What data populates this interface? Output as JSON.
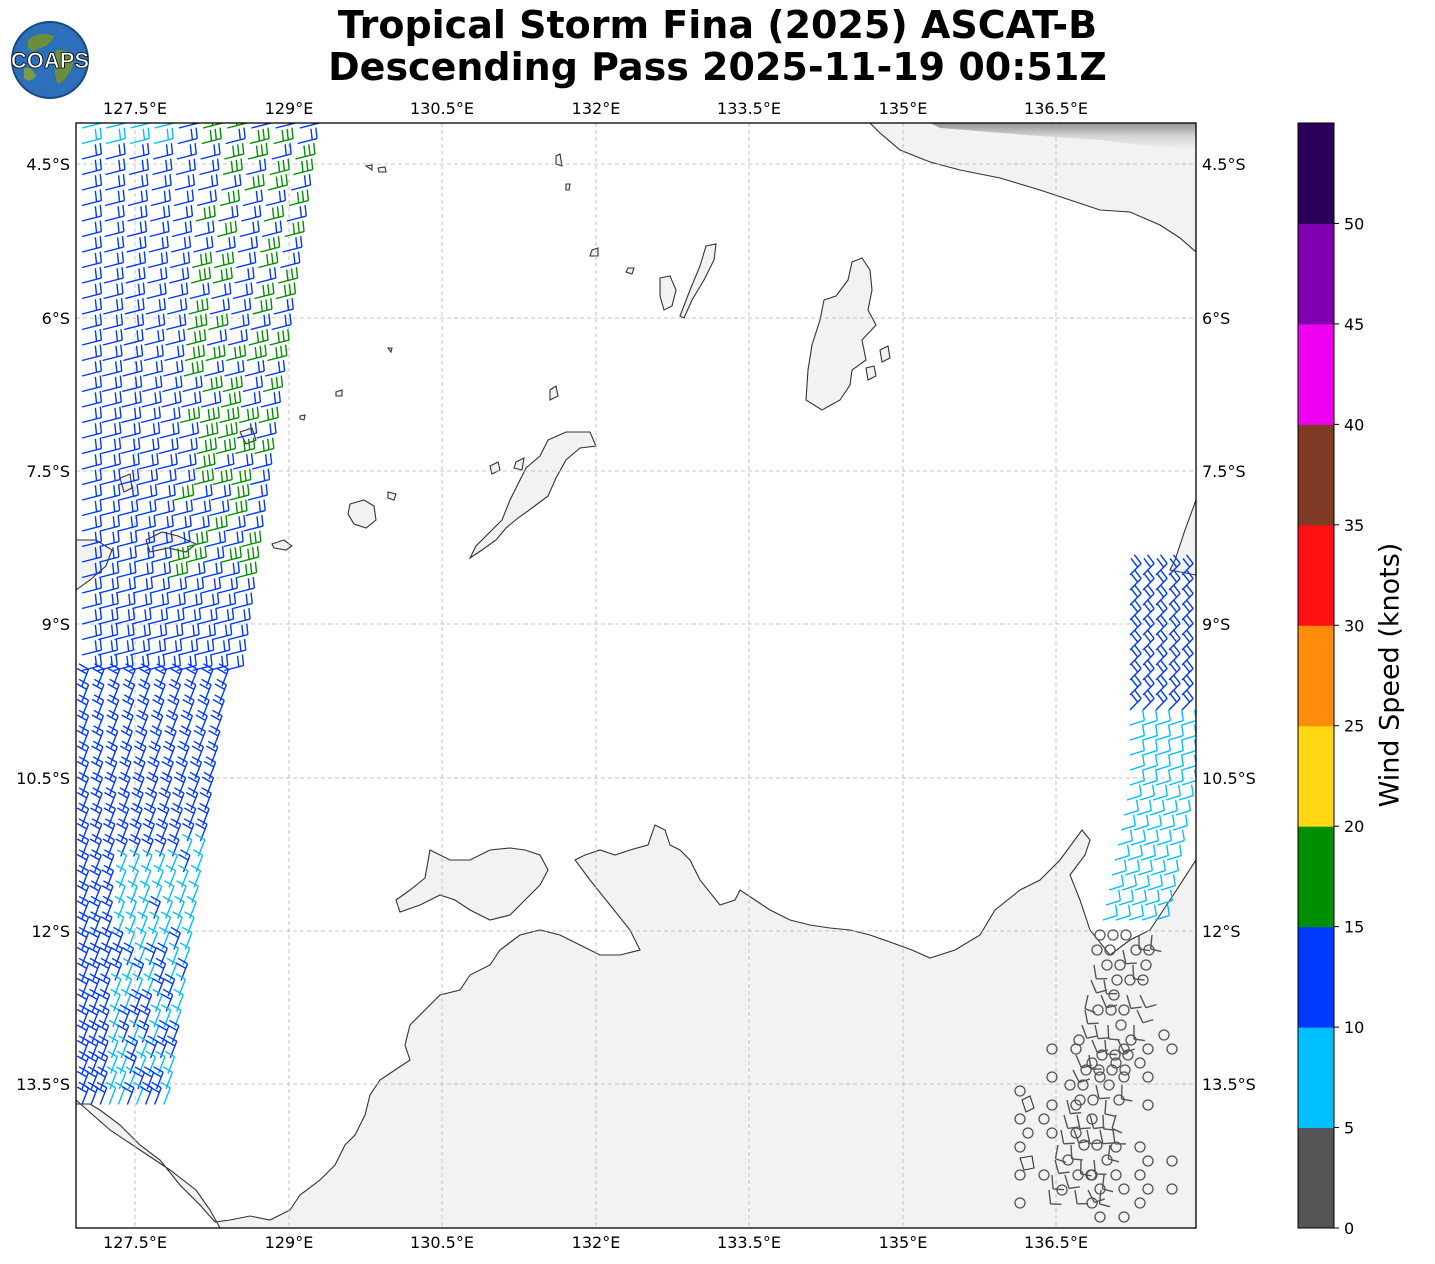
{
  "title": {
    "line1": "Tropical Storm Fina (2025) ASCAT-B",
    "line2": "Descending Pass 2025-11-19 00:51Z"
  },
  "logo": {
    "text": "COAPS",
    "icon": "globe-icon"
  },
  "axes": {
    "x_ticks": [
      "127.5°E",
      "129°E",
      "130.5°E",
      "132°E",
      "133.5°E",
      "135°E",
      "136.5°E"
    ],
    "y_ticks": [
      "4.5°S",
      "6°S",
      "7.5°S",
      "9°S",
      "10.5°S",
      "12°S",
      "13.5°S"
    ]
  },
  "colorbar": {
    "label": "Wind Speed (knots)",
    "ticks": [
      "0",
      "5",
      "10",
      "15",
      "20",
      "25",
      "30",
      "35",
      "40",
      "45",
      "50"
    ],
    "colors": [
      "#555555",
      "#00bfff",
      "#0038ff",
      "#008f00",
      "#ffd813",
      "#ff8c0a",
      "#ff1010",
      "#7f3b26",
      "#f000f0",
      "#8000b0",
      "#2a005a"
    ]
  },
  "colors": {
    "coast": "#333333",
    "grid": "#bbbbbb",
    "land": "#f3f3f3"
  }
}
